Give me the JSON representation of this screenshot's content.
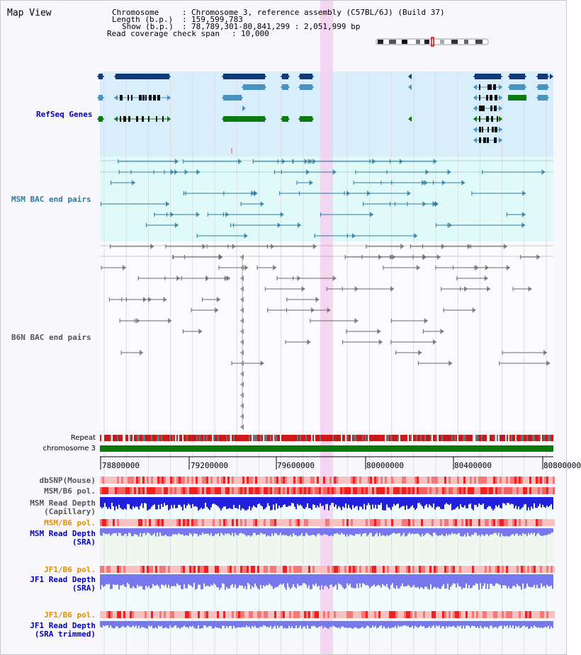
{
  "page": {
    "title": "Map View"
  },
  "info": {
    "chromosome_label": "Chromosome",
    "chromosome_value": "Chromosome 3, reference assembly (C57BL/6J) (Build 37)",
    "length_label": "Length (b.p.)",
    "length_value": "159,599,783",
    "show_label": "Show (b.p.)",
    "show_value": "78,789,301-80,841,299 : 2,051,999 bp",
    "coverage_label": "Read coverage check span",
    "coverage_value": "10,000"
  },
  "tracks": {
    "refseq": "RefSeq Genes",
    "msm_bac": "MSM BAC end pairs",
    "b6n_bac": "B6N BAC end pairs",
    "repeat": "Repeat",
    "chromosome": "chromosome 3",
    "dbsnp": "dbSNP(Mouse)",
    "msm_b6_pol": "MSM/B6 pol.",
    "msm_read_depth_cap_1": "MSM Read Depth",
    "msm_read_depth_cap_2": "(Capillary)",
    "msm_b6_pol_2": "MSM/B6 pol.",
    "msm_read_depth_sra_1": "MSM Read Depth",
    "msm_read_depth_sra_2": "(SRA)",
    "jf1_b6_pol": "JF1/B6 pol.",
    "jf1_read_depth_sra_1": "JF1 Read Depth",
    "jf1_read_depth_sra_2": "(SRA)",
    "jf1_b6_pol_2": "JF1/B6 pol.",
    "jf1_read_depth_trim_1": "JF1 Read Depth",
    "jf1_read_depth_trim_2": "(SRA trimmed)"
  },
  "axis": {
    "ticks": [
      "78800000",
      "79200000",
      "79600000",
      "80000000",
      "80400000",
      "80800000"
    ]
  },
  "colors": {
    "refseq_bg": "#d8eefa",
    "msm_bg": "#e0fafa",
    "highlight": "#f5d0f0",
    "gene_dark": "#123a78",
    "gene_light": "#4a93c0",
    "gene_green": "#0b7a12",
    "msm_line": "#2c7a9e",
    "b6n_line": "#6a6a6a",
    "chrom_bar": "#0a7a0a",
    "label_blue": "#0000c0",
    "label_orange": "#e09000",
    "depth_blue": "#2020dd",
    "depth_light": "#7878ee"
  }
}
